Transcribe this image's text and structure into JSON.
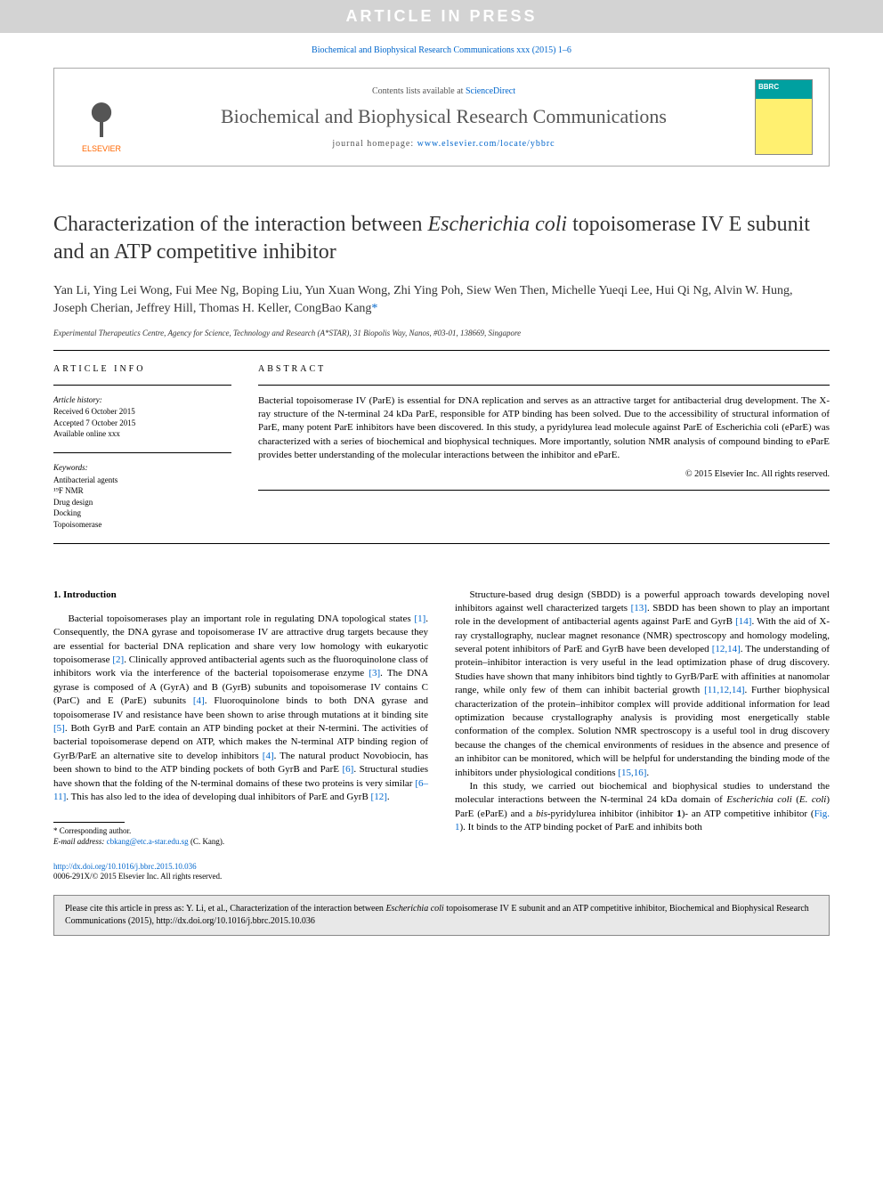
{
  "banner": "ARTICLE IN PRESS",
  "journal_ref": "Biochemical and Biophysical Research Communications xxx (2015) 1–6",
  "header": {
    "contents_prefix": "Contents lists available at ",
    "contents_link": "ScienceDirect",
    "journal_name": "Biochemical and Biophysical Research Communications",
    "homepage_prefix": "journal homepage: ",
    "homepage_url": "www.elsevier.com/locate/ybbrc",
    "elsevier_label": "ELSEVIER"
  },
  "title_part1": "Characterization of the interaction between ",
  "title_italic": "Escherichia coli",
  "title_part2": " topoisomerase IV E subunit and an ATP competitive inhibitor",
  "authors": "Yan Li, Ying Lei Wong, Fui Mee Ng, Boping Liu, Yun Xuan Wong, Zhi Ying Poh, Siew Wen Then, Michelle Yueqi Lee, Hui Qi Ng, Alvin W. Hung, Joseph Cherian, Jeffrey Hill, Thomas H. Keller, CongBao Kang",
  "corr_mark": "*",
  "affiliation": "Experimental Therapeutics Centre, Agency for Science, Technology and Research (A*STAR), 31 Biopolis Way, Nanos, #03-01, 138669, Singapore",
  "info": {
    "header": "ARTICLE INFO",
    "history_head": "Article history:",
    "received": "Received 6 October 2015",
    "accepted": "Accepted 7 October 2015",
    "online": "Available online xxx",
    "keywords_head": "Keywords:",
    "keywords": [
      "Antibacterial agents",
      "¹⁹F NMR",
      "Drug design",
      "Docking",
      "Topoisomerase"
    ]
  },
  "abstract": {
    "header": "ABSTRACT",
    "text": "Bacterial topoisomerase IV (ParE) is essential for DNA replication and serves as an attractive target for antibacterial drug development. The X-ray structure of the N-terminal 24 kDa ParE, responsible for ATP binding has been solved. Due to the accessibility of structural information of ParE, many potent ParE inhibitors have been discovered. In this study, a pyridylurea lead molecule against ParE of Escherichia coli (eParE) was characterized with a series of biochemical and biophysical techniques. More importantly, solution NMR analysis of compound binding to eParE provides better understanding of the molecular interactions between the inhibitor and eParE.",
    "copyright": "© 2015 Elsevier Inc. All rights reserved."
  },
  "section1": {
    "head": "1. Introduction",
    "para1a": "Bacterial topoisomerases play an important role in regulating DNA topological states ",
    "ref1": "[1]",
    "para1b": ". Consequently, the DNA gyrase and topoisomerase IV are attractive drug targets because they are essential for bacterial DNA replication and share very low homology with eukaryotic topoisomerase ",
    "ref2": "[2]",
    "para1c": ". Clinically approved antibacterial agents such as the fluoroquinolone class of inhibitors work via the interference of the bacterial topoisomerase enzyme ",
    "ref3": "[3]",
    "para1d": ". The DNA gyrase is composed of A (GyrA) and B (GyrB) subunits and topoisomerase IV contains C (ParC) and E (ParE) subunits ",
    "ref4": "[4]",
    "para1e": ". Fluoroquinolone binds to both DNA gyrase and topoisomerase IV and resistance have been shown to arise through mutations at it binding site ",
    "ref5": "[5]",
    "para1f": ". Both GyrB and ParE contain an ATP binding pocket at their N-termini. The activities of bacterial topoisomerase depend on ATP, which makes the N-terminal ATP binding region of GyrB/ParE an alternative site to develop inhibitors ",
    "ref4b": "[4]",
    "para1g": ". The natural product Novobiocin, has been shown to bind to the ATP binding pockets of both GyrB and ParE ",
    "ref6": "[6]",
    "para1h": ". Structural studies have shown that the folding of the N-terminal domains of these two proteins is very similar ",
    "ref611": "[6–11]",
    "para1i": ". This has also led to the idea of developing dual inhibitors of ParE and GyrB ",
    "ref12": "[12]",
    "para1j": "."
  },
  "col2": {
    "para1a": "Structure-based drug design (SBDD) is a powerful approach towards developing novel inhibitors against well characterized targets ",
    "ref13": "[13]",
    "para1b": ". SBDD has been shown to play an important role in the development of antibacterial agents against ParE and GyrB ",
    "ref14": "[14]",
    "para1c": ". With the aid of X-ray crystallography, nuclear magnet resonance (NMR) spectroscopy and homology modeling, several potent inhibitors of ParE and GyrB have been developed ",
    "ref1214": "[12,14]",
    "para1d": ". The understanding of protein–inhibitor interaction is very useful in the lead optimization phase of drug discovery. Studies have shown that many inhibitors bind tightly to GyrB/ParE with affinities at nanomolar range, while only few of them can inhibit bacterial growth ",
    "ref111214": "[11,12,14]",
    "para1e": ". Further biophysical characterization of the protein–inhibitor complex will provide additional information for lead optimization because crystallography analysis is providing most energetically stable conformation of the complex. Solution NMR spectroscopy is a useful tool in drug discovery because the changes of the chemical environments of residues in the absence and presence of an inhibitor can be monitored, which will be helpful for understanding the binding mode of the inhibitors under physiological conditions ",
    "ref1516": "[15,16]",
    "para1f": ".",
    "para2a": "In this study, we carried out biochemical and biophysical studies to understand the molecular interactions between the N-terminal 24 kDa domain of ",
    "para2_italic1": "Escherichia coli",
    "para2b": " (",
    "para2_italic2": "E. coli",
    "para2c": ") ParE (eParE) and a ",
    "para2_italic3": "bis",
    "para2d": "-pyridylurea inhibitor (inhibitor ",
    "para2_bold": "1",
    "para2e": ")- an ATP competitive inhibitor (",
    "reffig1": "Fig. 1",
    "para2f": "). It binds to the ATP binding pocket of ParE and inhibits both"
  },
  "footnote": {
    "corr": "* Corresponding author.",
    "email_label": "E-mail address: ",
    "email": "cbkang@etc.a-star.edu.sg",
    "email_name": " (C. Kang)."
  },
  "doi": {
    "url": "http://dx.doi.org/10.1016/j.bbrc.2015.10.036",
    "issn_line": "0006-291X/© 2015 Elsevier Inc. All rights reserved."
  },
  "citebox": {
    "prefix": "Please cite this article in press as: Y. Li, et al., Characterization of the interaction between ",
    "italic": "Escherichia coli",
    "suffix": " topoisomerase IV E subunit and an ATP competitive inhibitor, Biochemical and Biophysical Research Communications (2015), http://dx.doi.org/10.1016/j.bbrc.2015.10.036"
  }
}
